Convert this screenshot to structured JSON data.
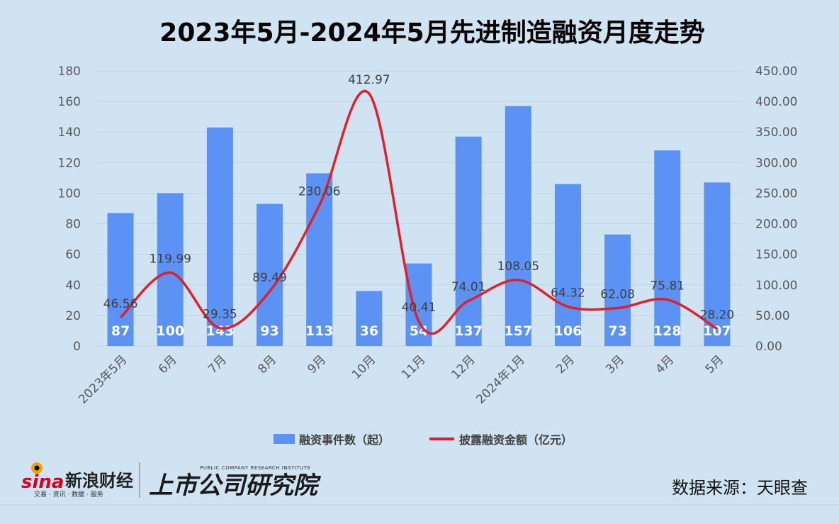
{
  "chart_data": {
    "type": "bar",
    "title": "2023年5月-2024年5月先进制造融资月度走势",
    "categories": [
      "2023年5月",
      "6月",
      "7月",
      "8月",
      "9月",
      "10月",
      "11月",
      "12月",
      "2024年1月",
      "2月",
      "3月",
      "4月",
      "5月"
    ],
    "series": [
      {
        "name": "融资事件数（起）",
        "type": "bar",
        "axis": "left",
        "color": "#5b92f3",
        "values": [
          87,
          100,
          143,
          93,
          113,
          36,
          54,
          137,
          157,
          106,
          73,
          128,
          107
        ],
        "labels": [
          "87",
          "100",
          "143",
          "93",
          "113",
          "36",
          "54",
          "137",
          "157",
          "106",
          "73",
          "128",
          "107"
        ]
      },
      {
        "name": "披露融资金额（亿元）",
        "type": "line",
        "axis": "right",
        "color": "#e0202a",
        "values": [
          46.56,
          119.99,
          29.35,
          89.49,
          230.06,
          412.97,
          40.41,
          74.01,
          108.05,
          64.32,
          62.08,
          75.81,
          28.2
        ],
        "labels": [
          "46.56",
          "119.99",
          "29.35",
          "89.49",
          "230.06",
          "412.97",
          "40.41",
          "74.01",
          "108.05",
          "64.32",
          "62.08",
          "75.81",
          "28.20"
        ]
      }
    ],
    "y_left": {
      "min": 0,
      "max": 180,
      "step": 20,
      "ticks": [
        "0",
        "20",
        "40",
        "60",
        "80",
        "100",
        "120",
        "140",
        "160",
        "180"
      ]
    },
    "y_right": {
      "min": 0,
      "max": 450,
      "step": 50,
      "ticks": [
        "0.00",
        "50.00",
        "100.00",
        "150.00",
        "200.00",
        "250.00",
        "300.00",
        "350.00",
        "400.00",
        "450.00"
      ]
    },
    "grid": true,
    "legend_position": "bottom",
    "background": "#cfe3f3"
  },
  "footer": {
    "source": "数据来源：天眼查",
    "logo_sina_mark": "sina",
    "logo_sina_name": "新浪财经",
    "logo_sina_sub": "交易 · 资讯 · 数据 · 服务",
    "logo_institute_name": "上市公司研究院",
    "logo_institute_en": "PUBLIC COMPANY RESEARCH INSTITUTE"
  }
}
